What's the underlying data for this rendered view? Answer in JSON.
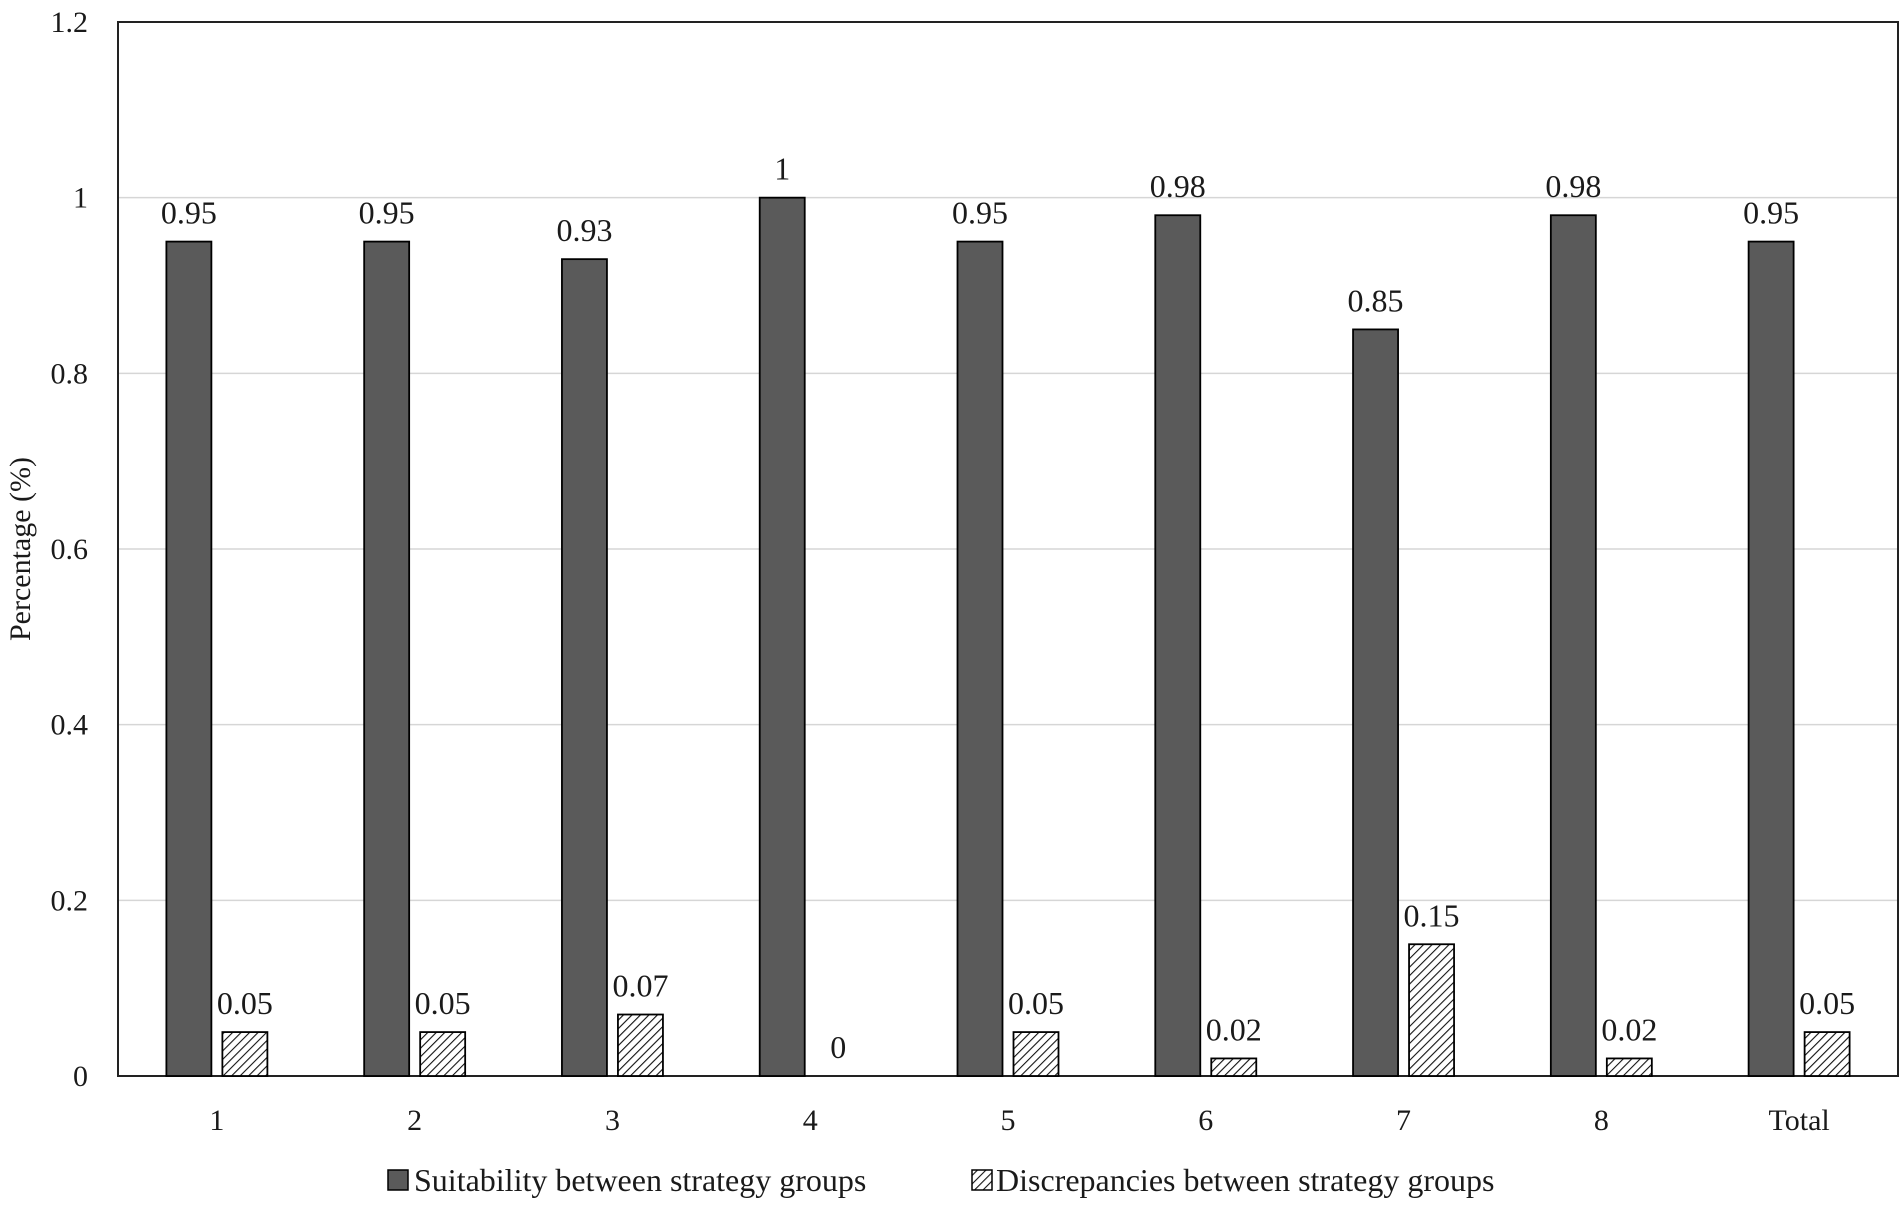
{
  "chart_data": {
    "type": "bar",
    "categories": [
      "1",
      "2",
      "3",
      "4",
      "5",
      "6",
      "7",
      "8",
      "Total"
    ],
    "series": [
      {
        "name": "Suitability between strategy groups",
        "values": [
          0.95,
          0.95,
          0.93,
          1,
          0.95,
          0.98,
          0.85,
          0.98,
          0.95
        ],
        "labels": [
          "0.95",
          "0.95",
          "0.93",
          "1",
          "0.95",
          "0.98",
          "0.85",
          "0.98",
          "0.95"
        ],
        "fill": "solid",
        "color": "#5a5a5a"
      },
      {
        "name": "Discrepancies between strategy groups",
        "values": [
          0.05,
          0.05,
          0.07,
          0,
          0.05,
          0.02,
          0.15,
          0.02,
          0.05
        ],
        "labels": [
          "0.05",
          "0.05",
          "0.07",
          "0",
          "0.05",
          "0.02",
          "0.15",
          "0.02",
          "0.05"
        ],
        "fill": "diagonal-hatch",
        "color": "#000000"
      }
    ],
    "ylabel": "Percentage (%)",
    "xlabel": "",
    "ylim": [
      0,
      1.2
    ],
    "yticks": [
      "0",
      "0.2",
      "0.4",
      "0.6",
      "0.8",
      "1",
      "1.2"
    ],
    "ytick_values": [
      0,
      0.2,
      0.4,
      0.6,
      0.8,
      1,
      1.2
    ],
    "grid": true,
    "legend_position": "bottom"
  }
}
